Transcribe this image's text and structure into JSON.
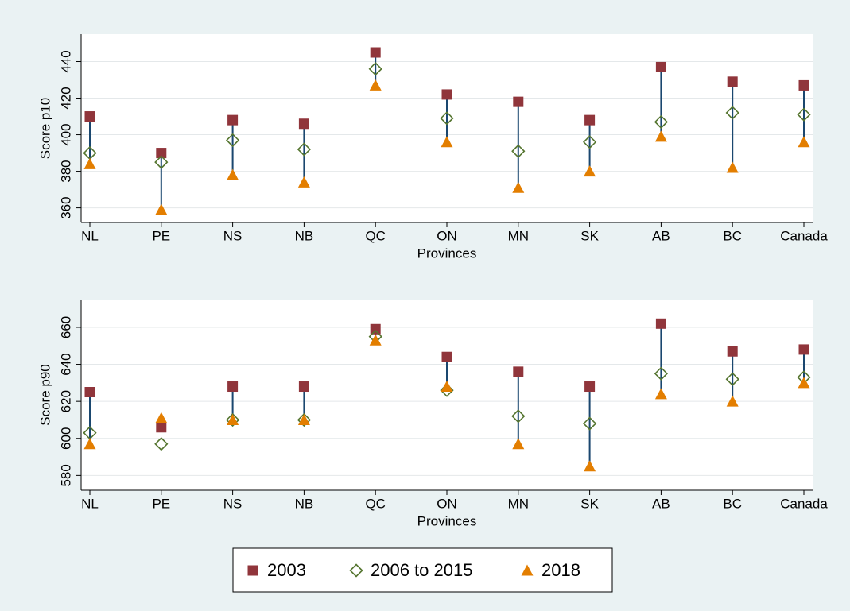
{
  "chart_data": [
    {
      "type": "scatter",
      "ylabel": "Score p10",
      "xlabel": "Provinces",
      "categories": [
        "NL",
        "PE",
        "NS",
        "NB",
        "QC",
        "ON",
        "MN",
        "SK",
        "AB",
        "BC",
        "Canada"
      ],
      "ylim": [
        352,
        455
      ],
      "yticks": [
        360,
        380,
        400,
        420,
        440
      ],
      "grid": true,
      "spike_color": "#1a476f",
      "series": [
        {
          "name": "2003",
          "color": "#90353b",
          "marker": "square",
          "values": [
            410,
            390,
            408,
            406,
            445,
            422,
            418,
            408,
            437,
            429,
            427
          ]
        },
        {
          "name": "2006 to 2015",
          "color": "#55752f",
          "marker": "diamond",
          "values": [
            390,
            385,
            397,
            392,
            436,
            409,
            391,
            396,
            407,
            412,
            411
          ]
        },
        {
          "name": "2018",
          "color": "#e37e00",
          "marker": "triangle",
          "values": [
            384,
            359,
            378,
            374,
            427,
            396,
            371,
            380,
            399,
            382,
            396
          ]
        }
      ]
    },
    {
      "type": "scatter",
      "ylabel": "Score p90",
      "xlabel": "Provinces",
      "categories": [
        "NL",
        "PE",
        "NS",
        "NB",
        "QC",
        "ON",
        "MN",
        "SK",
        "AB",
        "BC",
        "Canada"
      ],
      "ylim": [
        572,
        675
      ],
      "yticks": [
        580,
        600,
        620,
        640,
        660
      ],
      "grid": true,
      "spike_color": "#1a476f",
      "series": [
        {
          "color": "#90353b",
          "marker": "square",
          "values": [
            625,
            606,
            628,
            628,
            659,
            644,
            636,
            628,
            662,
            647,
            648
          ]
        },
        {
          "color": "#55752f",
          "marker": "diamond",
          "values": [
            603,
            597,
            610,
            610,
            655,
            626,
            612,
            608,
            635,
            632,
            633
          ]
        },
        {
          "color": "#e37e00",
          "marker": "triangle",
          "values": [
            597,
            611,
            610,
            610,
            653,
            628,
            597,
            585,
            624,
            620,
            630
          ]
        }
      ]
    }
  ]
}
